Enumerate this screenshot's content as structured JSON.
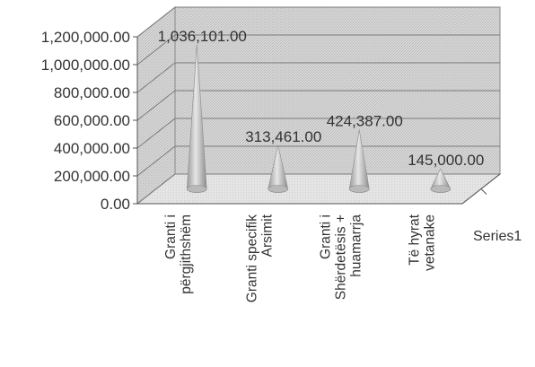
{
  "chart_data": {
    "type": "bar",
    "bar_shape": "cone",
    "three_d": true,
    "grid": true,
    "legend": "none",
    "categories": [
      [
        "Granti i",
        "përgjithshëm"
      ],
      [
        "Granti specifik",
        "Arsimit"
      ],
      [
        "Granti i",
        "Shërdetësis +",
        "huamarrja"
      ],
      [
        "Të hyrat",
        "vetanake"
      ]
    ],
    "series": [
      {
        "name": "Series1",
        "values": [
          1036101,
          313461,
          424387,
          145000
        ],
        "labels": [
          "1,036,101.00",
          "313,461.00",
          "424,387.00",
          "145,000.00"
        ]
      }
    ],
    "ylim": [
      0,
      1200000
    ],
    "yticks": [
      "0.00",
      "200,000.00",
      "400,000.00",
      "600,000.00",
      "800,000.00",
      "1,000,000.00",
      "1,200,000.00"
    ],
    "colors": {
      "wall": "#d4d4d4",
      "floor": "#e2e2e2",
      "grid": "#808080",
      "cone": "#bdbdbd",
      "text": "#333333"
    }
  }
}
